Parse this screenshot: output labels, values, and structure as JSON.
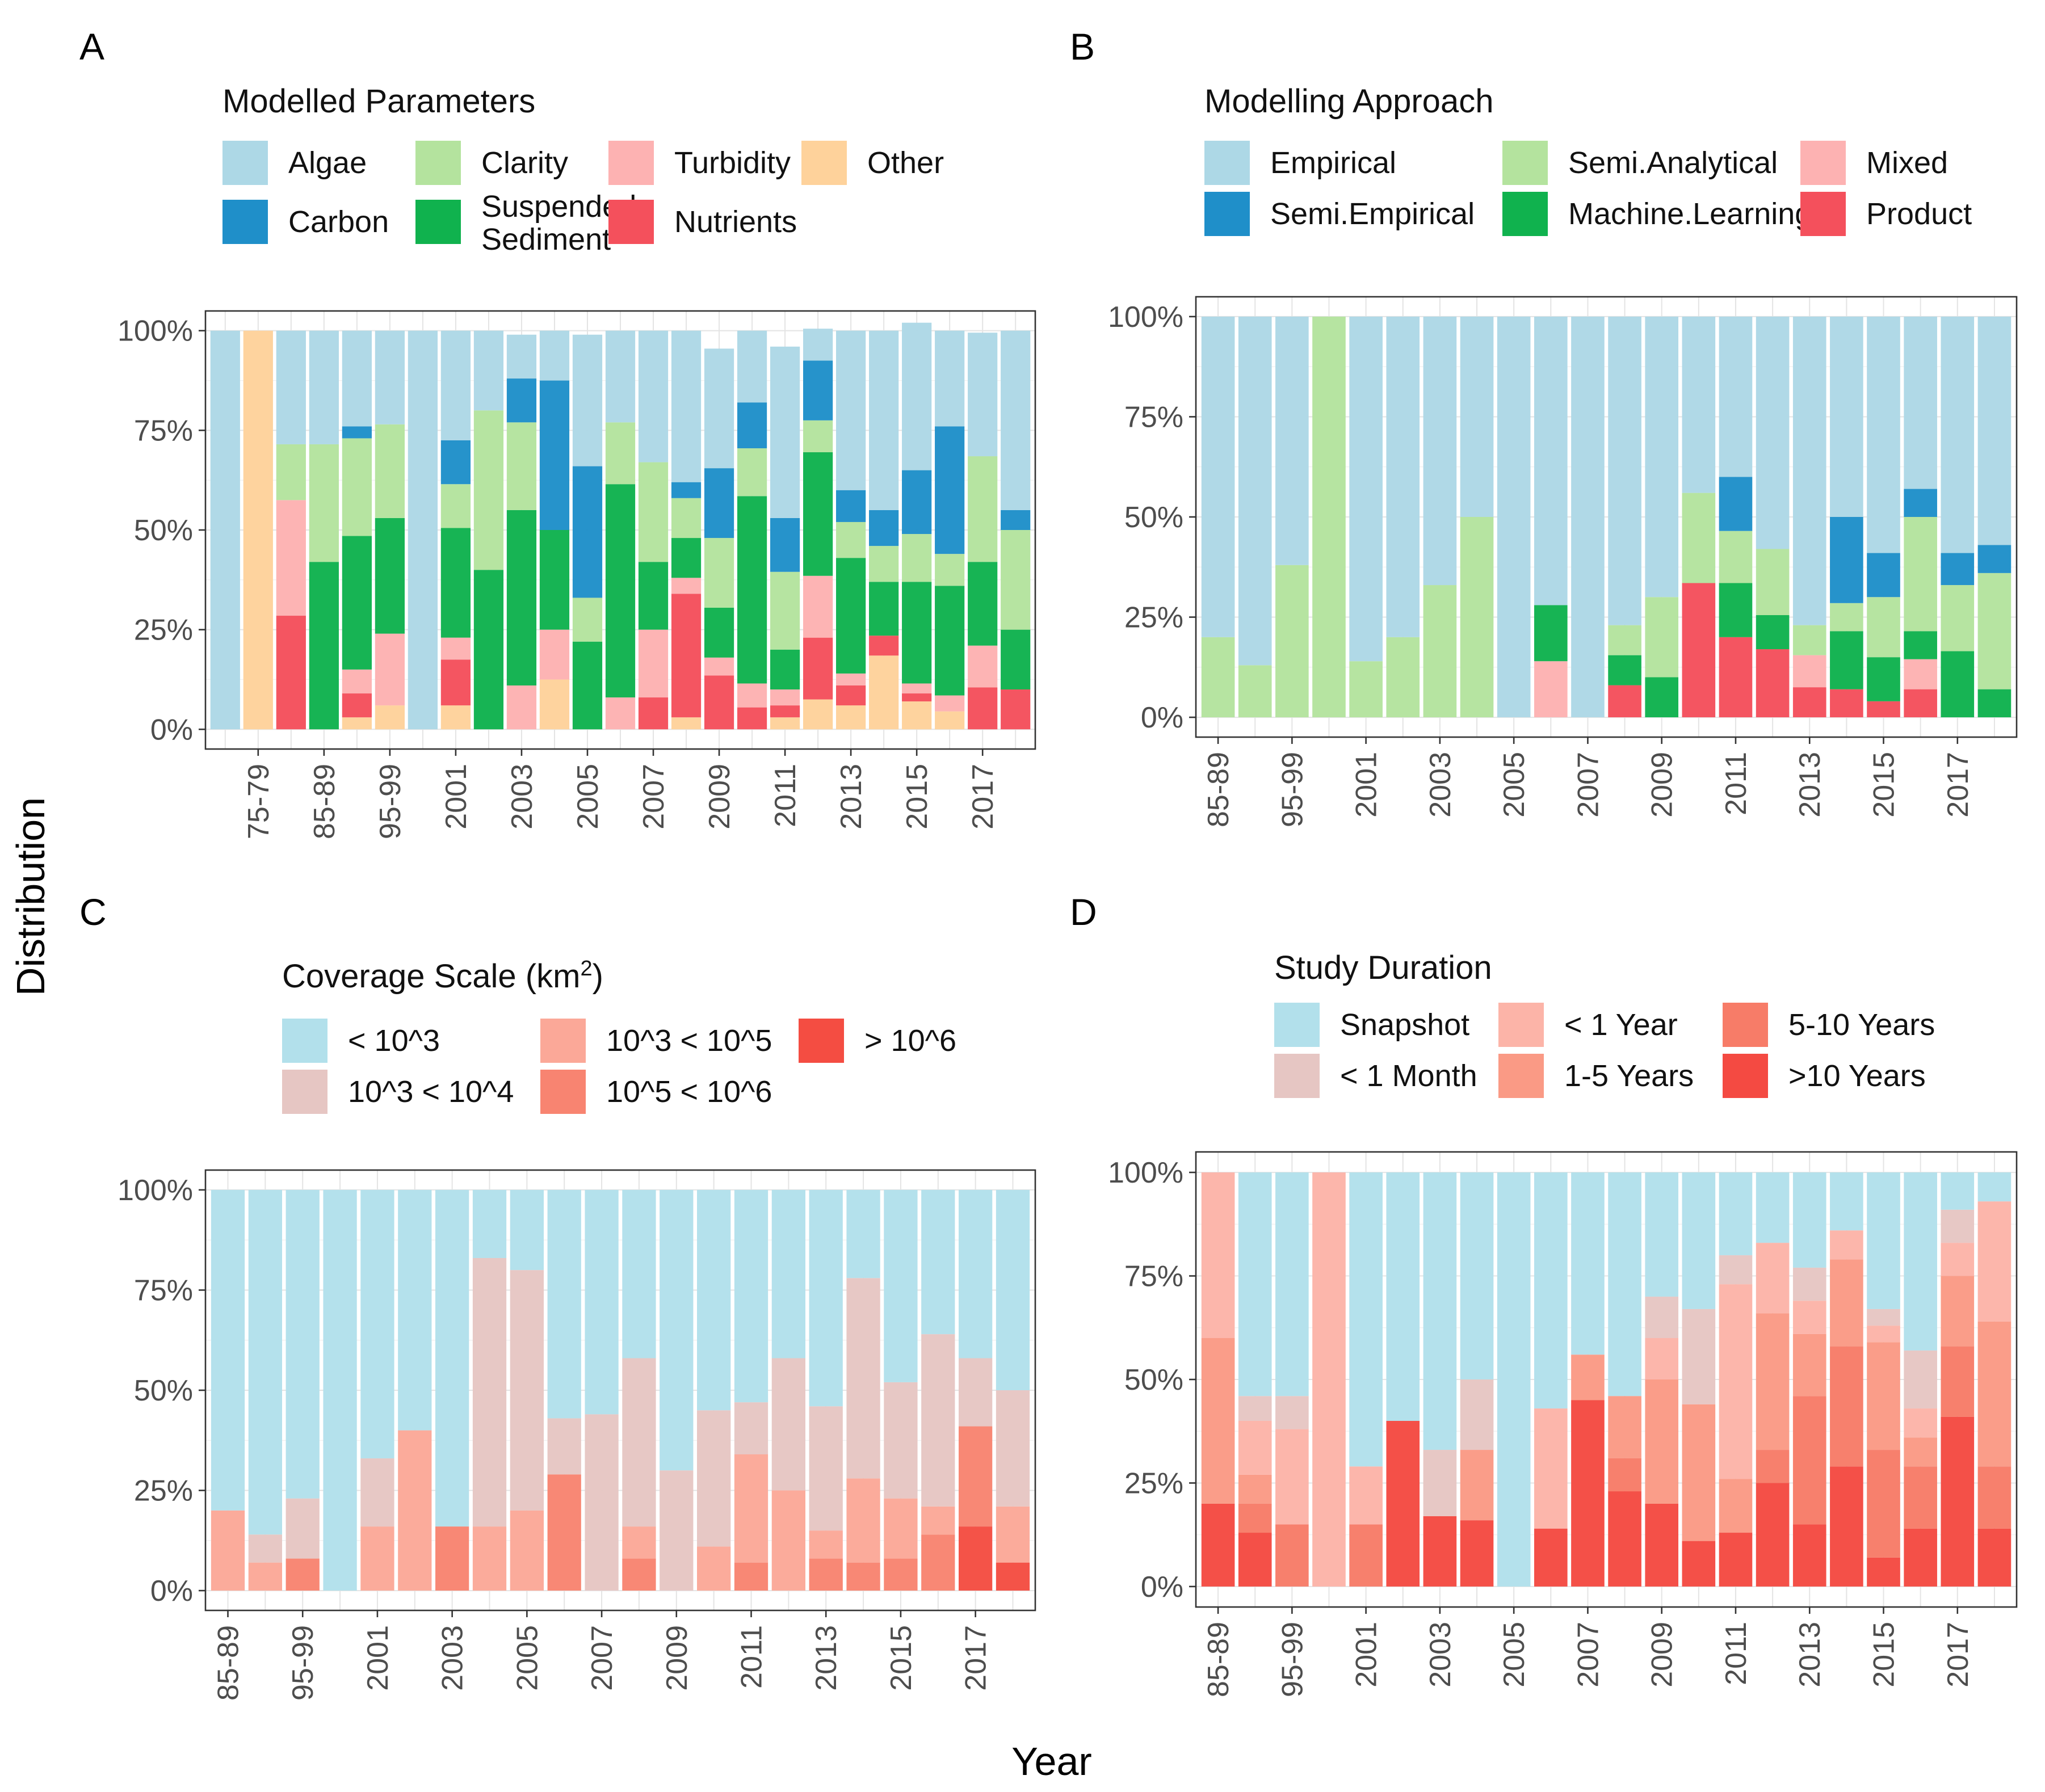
{
  "figure": {
    "ylabel": "Distribution",
    "xlabel": "Year"
  },
  "colors": {
    "Algae": "#ADD8E6",
    "Carbon": "#1F8FC9",
    "Clarity": "#B4E39E",
    "Suspended Sediment": "#10B24E",
    "Turbidity": "#FDB2B2",
    "Nutrients": "#F4505C",
    "Other": "#FED29B",
    "Empirical": "#ADD8E6",
    "Semi.Empirical": "#1F8FC9",
    "Semi.Analytical": "#B4E39E",
    "Machine.Learning": "#10B24E",
    "Mixed": "#FDB2B2",
    "Product": "#F4505C",
    "< 10^3": "#B2E0EB",
    "10^3 < 10^4": "#E6C6C3",
    "10^3 < 10^5": "#FBA898",
    "10^5 < 10^6": "#F88471",
    "> 10^6": "#F44D42",
    "Snapshot": "#B2E0EB",
    "< 1 Month": "#E6C6C3",
    "< 1 Year": "#FCB4A8",
    "1-5 Years": "#FA9A85",
    "5-10 Years": "#F77C68",
    ">10 Years": "#F44A42"
  },
  "chart_data": [
    {
      "panel": "A",
      "type": "bar",
      "stacked": "fill",
      "legend_title": "Modelled Parameters",
      "legend_items": [
        "Algae",
        "Clarity",
        "Turbidity",
        "Other",
        "Carbon",
        "Suspended Sediment",
        "Nutrients"
      ],
      "stack_order": [
        "Algae",
        "Carbon",
        "Clarity",
        "Suspended Sediment",
        "Turbidity",
        "Nutrients",
        "Other"
      ],
      "categories": [
        "70-74",
        "75-79",
        "80-84",
        "85-89",
        "90-94",
        "95-99",
        "2000",
        "2001",
        "2002",
        "2003",
        "2004",
        "2005",
        "2006",
        "2007",
        "2008",
        "2009",
        "2010",
        "2011",
        "2012",
        "2013",
        "2014",
        "2015",
        "2016",
        "2017",
        "2018"
      ],
      "tick_labels": [
        "75-79",
        "85-89",
        "95-99",
        "2001",
        "2003",
        "2005",
        "2007",
        "2009",
        "2011",
        "2013",
        "2015",
        "2017"
      ],
      "y_ticks": [
        "0%",
        "25%",
        "50%",
        "75%",
        "100%"
      ],
      "ylim": [
        0,
        100
      ],
      "series": [
        {
          "name": "Algae",
          "values": [
            100,
            0,
            28.5,
            28.5,
            24,
            23.5,
            100,
            27.5,
            20,
            11,
            12.5,
            33,
            23,
            33,
            38,
            30,
            18,
            43,
            8,
            40,
            45,
            37,
            24,
            31,
            45
          ]
        },
        {
          "name": "Carbon",
          "values": [
            0,
            0,
            0,
            0,
            3,
            0,
            0,
            11,
            0,
            11,
            37.5,
            33,
            0,
            0,
            4,
            17.5,
            11.5,
            13.5,
            15,
            8,
            9,
            16,
            32,
            0,
            5
          ]
        },
        {
          "name": "Clarity",
          "values": [
            0,
            0,
            14,
            29.5,
            24.5,
            23.5,
            0,
            11,
            40,
            22,
            0,
            11,
            15.5,
            25,
            10,
            17.5,
            12,
            19.5,
            8,
            9,
            9,
            12,
            8,
            26.5,
            25
          ]
        },
        {
          "name": "Suspended Sediment",
          "values": [
            0,
            0,
            0,
            42,
            33.5,
            29,
            0,
            27.5,
            40,
            44,
            25,
            22,
            53.5,
            17,
            10,
            12.5,
            47,
            10,
            31,
            29,
            13.5,
            25.5,
            27.5,
            21,
            15
          ]
        },
        {
          "name": "Turbidity",
          "values": [
            0,
            0,
            29,
            0,
            6,
            18,
            0,
            5.5,
            0,
            11,
            12.5,
            0,
            8,
            17,
            4,
            4.5,
            6,
            4,
            15.5,
            3,
            0,
            2.5,
            4,
            10.5,
            0
          ]
        },
        {
          "name": "Nutrients",
          "values": [
            0,
            0,
            28.5,
            0,
            6,
            0,
            0,
            11.5,
            0,
            0,
            0,
            0,
            0,
            8,
            31,
            13.5,
            5.5,
            3,
            15.5,
            5,
            5,
            2,
            0,
            10.5,
            10
          ]
        },
        {
          "name": "Other",
          "values": [
            0,
            100,
            0,
            0,
            3,
            6,
            0,
            6,
            0,
            0,
            12.5,
            0,
            0,
            0,
            3,
            0,
            0,
            3,
            7.5,
            6,
            18.5,
            7,
            4.5,
            0,
            0
          ]
        }
      ]
    },
    {
      "panel": "B",
      "type": "bar",
      "stacked": "fill",
      "legend_title": "Modelling Approach",
      "legend_items": [
        "Empirical",
        "Semi.Analytical",
        "Mixed",
        "Semi.Empirical",
        "Machine.Learning",
        "Product"
      ],
      "stack_order": [
        "Empirical",
        "Semi.Empirical",
        "Semi.Analytical",
        "Machine.Learning",
        "Mixed",
        "Product"
      ],
      "categories": [
        "85-89",
        "90-94",
        "95-99",
        "2000",
        "2001",
        "2002",
        "2003",
        "2004",
        "2005",
        "2006",
        "2007",
        "2008",
        "2009",
        "2010",
        "2011",
        "2012",
        "2013",
        "2014",
        "2015",
        "2016",
        "2017",
        "2018"
      ],
      "tick_labels": [
        "85-89",
        "95-99",
        "2001",
        "2003",
        "2005",
        "2007",
        "2009",
        "2011",
        "2013",
        "2015",
        "2017"
      ],
      "y_ticks": [
        "0%",
        "25%",
        "50%",
        "75%",
        "100%"
      ],
      "ylim": [
        0,
        100
      ],
      "series": [
        {
          "name": "Empirical",
          "values": [
            80,
            87,
            62,
            0,
            86,
            80,
            67,
            50,
            100,
            72,
            100,
            77,
            70,
            44,
            40,
            58,
            77,
            50,
            59,
            43,
            59,
            57
          ]
        },
        {
          "name": "Semi.Empirical",
          "values": [
            0,
            0,
            0,
            0,
            0,
            0,
            0,
            0,
            0,
            0,
            0,
            0,
            0,
            0,
            13.5,
            0,
            0,
            21.5,
            11,
            7,
            8,
            7
          ]
        },
        {
          "name": "Semi.Analytical",
          "values": [
            20,
            13,
            38,
            100,
            14,
            20,
            33,
            50,
            0,
            0,
            0,
            7.5,
            20,
            22.5,
            13,
            16.5,
            7.5,
            7,
            15,
            28.5,
            16.5,
            29
          ]
        },
        {
          "name": "Machine.Learning",
          "values": [
            0,
            0,
            0,
            0,
            0,
            0,
            0,
            0,
            0,
            14,
            0,
            7.5,
            10,
            0,
            13.5,
            8.5,
            0,
            14.5,
            11,
            7,
            16.5,
            7
          ]
        },
        {
          "name": "Mixed",
          "values": [
            0,
            0,
            0,
            0,
            0,
            0,
            0,
            0,
            0,
            14,
            0,
            0,
            0,
            0,
            0,
            0,
            8,
            0,
            0,
            7.5,
            0,
            0
          ]
        },
        {
          "name": "Product",
          "values": [
            0,
            0,
            0,
            0,
            0,
            0,
            0,
            0,
            0,
            0,
            0,
            8,
            0,
            33.5,
            20,
            17,
            7.5,
            7,
            4,
            7,
            0,
            0
          ]
        }
      ]
    },
    {
      "panel": "C",
      "type": "bar",
      "stacked": "fill",
      "legend_title": "Coverage Scale (km",
      "legend_title_sup": "2",
      "legend_title_end": ")",
      "legend_items": [
        "< 10^3",
        "10^3 < 10^5",
        "> 10^6",
        "10^3 < 10^4",
        "10^5 < 10^6"
      ],
      "stack_order": [
        "< 10^3",
        "10^3 < 10^4",
        "10^3 < 10^5",
        "10^5 < 10^6",
        "> 10^6"
      ],
      "categories": [
        "85-89",
        "90-94",
        "95-99",
        "2000",
        "2001",
        "2002",
        "2003",
        "2004",
        "2005",
        "2006",
        "2007",
        "2008",
        "2009",
        "2010",
        "2011",
        "2012",
        "2013",
        "2014",
        "2015",
        "2016",
        "2017",
        "2018"
      ],
      "tick_labels": [
        "85-89",
        "95-99",
        "2001",
        "2003",
        "2005",
        "2007",
        "2009",
        "2011",
        "2013",
        "2015",
        "2017"
      ],
      "y_ticks": [
        "0%",
        "25%",
        "50%",
        "75%",
        "100%"
      ],
      "ylim": [
        0,
        100
      ],
      "series": [
        {
          "name": "< 10^3",
          "values": [
            80,
            86,
            77,
            100,
            67,
            60,
            84,
            17,
            20,
            57,
            56,
            42,
            70,
            55,
            53,
            42,
            54,
            22,
            48,
            36,
            42,
            50
          ]
        },
        {
          "name": "10^3 < 10^4",
          "values": [
            0,
            7,
            15,
            0,
            17,
            0,
            0,
            67,
            60,
            14,
            44,
            42,
            30,
            34,
            13,
            33,
            31,
            50,
            29,
            43,
            17,
            29
          ]
        },
        {
          "name": "10^3 < 10^5",
          "values": [
            20,
            7,
            0,
            0,
            16,
            40,
            0,
            16,
            20,
            0,
            0,
            8,
            0,
            11,
            27,
            25,
            7,
            21,
            15,
            7,
            0,
            14
          ]
        },
        {
          "name": "10^5 < 10^6",
          "values": [
            0,
            0,
            8,
            0,
            0,
            0,
            16,
            0,
            0,
            29,
            0,
            8,
            0,
            0,
            7,
            0,
            8,
            7,
            8,
            14,
            25,
            0
          ]
        },
        {
          "name": "> 10^6",
          "values": [
            0,
            0,
            0,
            0,
            0,
            0,
            0,
            0,
            0,
            0,
            0,
            0,
            0,
            0,
            0,
            0,
            0,
            0,
            0,
            0,
            16,
            7
          ]
        }
      ]
    },
    {
      "panel": "D",
      "type": "bar",
      "stacked": "fill",
      "legend_title": "Study Duration",
      "legend_items": [
        "Snapshot",
        "< 1 Year",
        "5-10 Years",
        "< 1 Month",
        "1-5 Years",
        ">10 Years"
      ],
      "stack_order": [
        "Snapshot",
        "< 1 Month",
        "< 1 Year",
        "1-5 Years",
        "5-10 Years",
        ">10 Years"
      ],
      "categories": [
        "85-89",
        "90-94",
        "95-99",
        "2000",
        "2001",
        "2002",
        "2003",
        "2004",
        "2005",
        "2006",
        "2007",
        "2008",
        "2009",
        "2010",
        "2011",
        "2012",
        "2013",
        "2014",
        "2015",
        "2016",
        "2017",
        "2018"
      ],
      "tick_labels": [
        "85-89",
        "95-99",
        "2001",
        "2003",
        "2005",
        "2007",
        "2009",
        "2011",
        "2013",
        "2015",
        "2017"
      ],
      "y_ticks": [
        "0%",
        "25%",
        "50%",
        "75%",
        "100%"
      ],
      "ylim": [
        0,
        100
      ],
      "series": [
        {
          "name": "Snapshot",
          "values": [
            0,
            54,
            54,
            0,
            71,
            60,
            67,
            50,
            100,
            57,
            44,
            54,
            30,
            33,
            20,
            17,
            23,
            14,
            33,
            43,
            9,
            7
          ]
        },
        {
          "name": "< 1 Month",
          "values": [
            0,
            6,
            8,
            0,
            0,
            0,
            16,
            17,
            0,
            0,
            0,
            0,
            10,
            23,
            7,
            0,
            8,
            0,
            4,
            14,
            8,
            0
          ]
        },
        {
          "name": "< 1 Year",
          "values": [
            40,
            13,
            23,
            100,
            14,
            0,
            0,
            0,
            0,
            29,
            0,
            0,
            10,
            0,
            47,
            17,
            8,
            7,
            4,
            7,
            8,
            29
          ]
        },
        {
          "name": "1-5 Years",
          "values": [
            40,
            7,
            0,
            0,
            0,
            0,
            0,
            17,
            0,
            0,
            11,
            15,
            30,
            33,
            13,
            33,
            15,
            21,
            26,
            7,
            17,
            35
          ]
        },
        {
          "name": "5-10 Years",
          "values": [
            0,
            7,
            15,
            0,
            15,
            0,
            0,
            0,
            0,
            0,
            0,
            8,
            0,
            0,
            0,
            8,
            31,
            29,
            26,
            15,
            17,
            15
          ]
        },
        {
          "name": ">10 Years",
          "values": [
            20,
            13,
            0,
            0,
            0,
            40,
            17,
            16,
            0,
            14,
            45,
            23,
            20,
            11,
            13,
            25,
            15,
            29,
            7,
            14,
            41,
            14
          ]
        }
      ]
    }
  ]
}
